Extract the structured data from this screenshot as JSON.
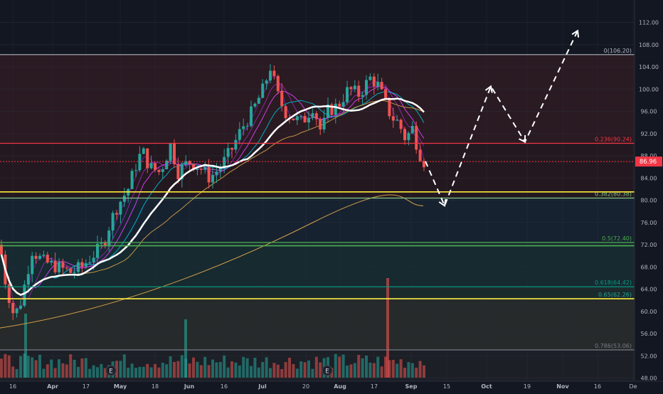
{
  "chart_data": {
    "type": "candlestick",
    "symbol_price_label": "86.96",
    "price_axis": {
      "ylim": [
        46,
        114
      ],
      "ticks": [
        48,
        52,
        56,
        60,
        64,
        68,
        72,
        76,
        80,
        84,
        88,
        92,
        96,
        100,
        104,
        108,
        112
      ],
      "tick_labels": [
        "48.00",
        "52.00",
        "56.00",
        "60.00",
        "64.00",
        "68.00",
        "72.00",
        "76.00",
        "80.00",
        "84.00",
        "88.00",
        "92.00",
        "96.00",
        "100.00",
        "104.00",
        "108.00",
        "112.00"
      ]
    },
    "time_axis": {
      "tick_labels": [
        "16",
        "Apr",
        "17",
        "May",
        "18",
        "Jun",
        "16",
        "Jul",
        "20",
        "Aug",
        "17",
        "Sep",
        "15",
        "Oct",
        "19",
        "Nov",
        "16",
        "De"
      ]
    },
    "fib_levels": [
      {
        "label": "0(106.20)",
        "price": 106.2,
        "color": "#b2b5be"
      },
      {
        "label": "0.236(90.24)",
        "price": 90.24,
        "color": "#f23645"
      },
      {
        "label": "0.382(80.38)",
        "price": 80.38,
        "color": "#81c784"
      },
      {
        "label": "0.5(72.40)",
        "price": 72.4,
        "color": "#4caf50"
      },
      {
        "label": "0.618(64.42)",
        "price": 64.42,
        "color": "#089981"
      },
      {
        "label": "0.65(62.26)",
        "price": 62.26,
        "color": "#26a69a"
      },
      {
        "label": "0.786(53.06)",
        "price": 53.06,
        "color": "#787b86"
      }
    ],
    "support_lines": [
      {
        "price": 81.5,
        "color": "#ffeb3b"
      },
      {
        "price": 71.8,
        "color": "#4caf50"
      },
      {
        "price": 62.26,
        "color": "#ffeb3b"
      }
    ],
    "current_price": 86.96,
    "projection_path": [
      [
        598,
        87
      ],
      [
        625,
        79
      ],
      [
        690,
        100.5
      ],
      [
        738,
        90.5
      ],
      [
        812,
        110.5
      ]
    ],
    "earnings_markers": [
      "E",
      "E"
    ],
    "colors": {
      "up": "#26a69a",
      "down": "#ef5350",
      "price_tag": "#f23645"
    }
  }
}
